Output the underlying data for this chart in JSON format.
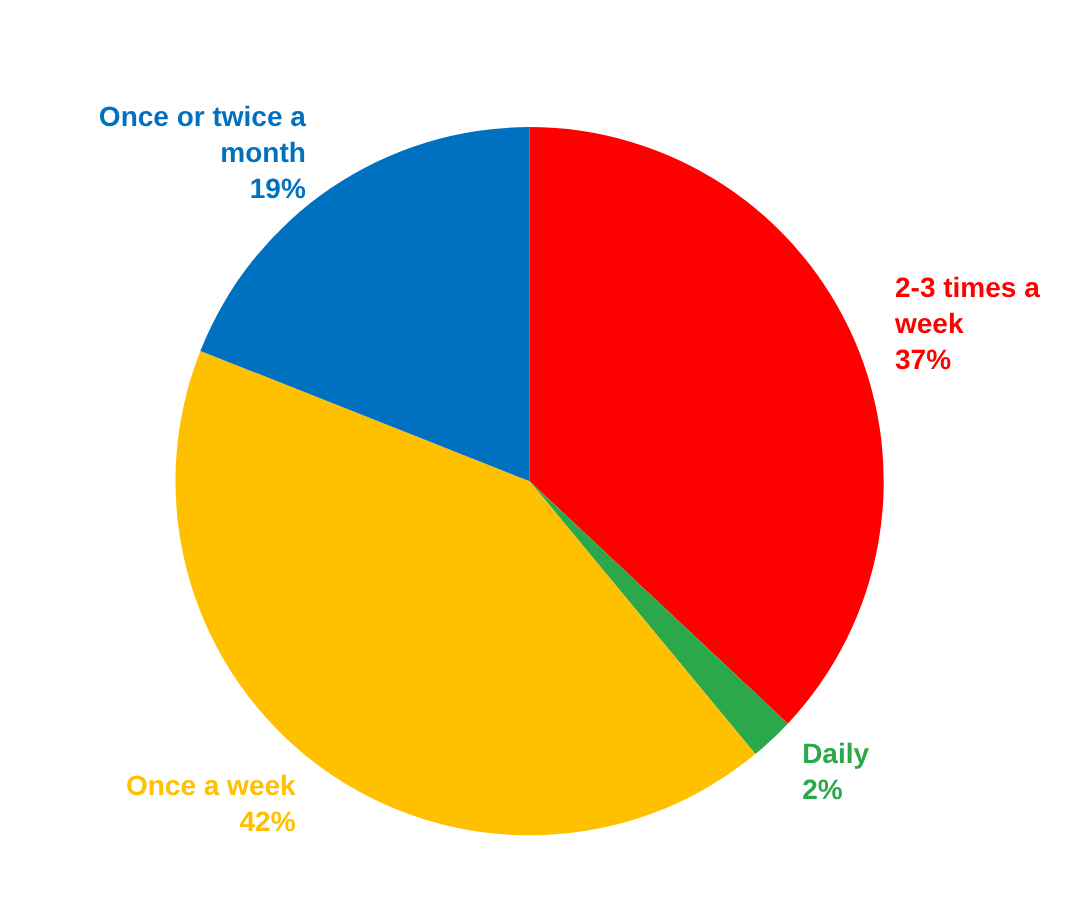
{
  "chart_data": {
    "type": "pie",
    "categories": [
      "2-3 times a week",
      "Daily",
      "Once a week",
      "Once or twice a month"
    ],
    "values": [
      37,
      2,
      42,
      19
    ],
    "value_labels": [
      "37%",
      "2%",
      "42%",
      "19%"
    ],
    "colors": [
      "#ff0000",
      "#2aa84a",
      "#ffc000",
      "#0070c0"
    ],
    "legend": false
  }
}
